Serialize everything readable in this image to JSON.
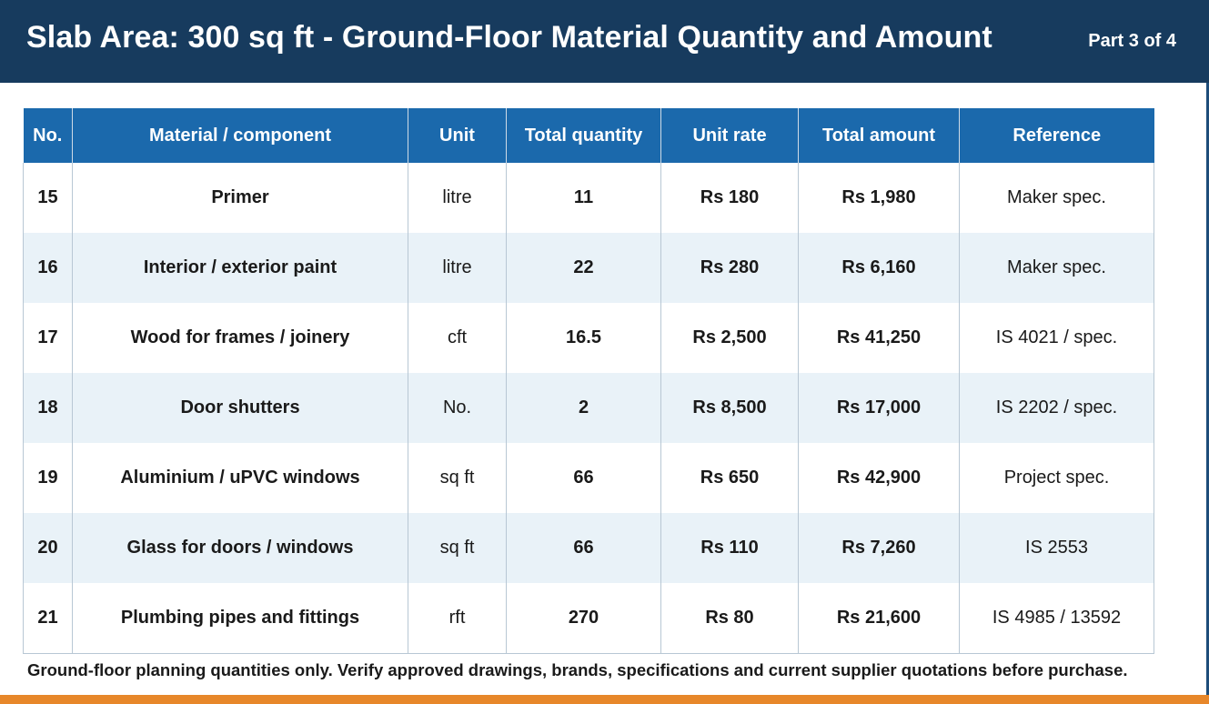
{
  "header": {
    "title": "Slab Area: 300 sq ft - Ground-Floor Material Quantity and Amount",
    "part": "Part 3 of 4"
  },
  "table": {
    "columns": [
      "No.",
      "Material / component",
      "Unit",
      "Total quantity",
      "Unit rate",
      "Total amount",
      "Reference"
    ],
    "rows": [
      {
        "no": "15",
        "material": "Primer",
        "unit": "litre",
        "quantity": "11",
        "rate": "Rs 180",
        "amount": "Rs 1,980",
        "reference": "Maker spec."
      },
      {
        "no": "16",
        "material": "Interior / exterior paint",
        "unit": "litre",
        "quantity": "22",
        "rate": "Rs 280",
        "amount": "Rs 6,160",
        "reference": "Maker spec."
      },
      {
        "no": "17",
        "material": "Wood for frames / joinery",
        "unit": "cft",
        "quantity": "16.5",
        "rate": "Rs 2,500",
        "amount": "Rs 41,250",
        "reference": "IS 4021 / spec."
      },
      {
        "no": "18",
        "material": "Door shutters",
        "unit": "No.",
        "quantity": "2",
        "rate": "Rs 8,500",
        "amount": "Rs 17,000",
        "reference": "IS 2202 / spec."
      },
      {
        "no": "19",
        "material": "Aluminium / uPVC windows",
        "unit": "sq ft",
        "quantity": "66",
        "rate": "Rs 650",
        "amount": "Rs 42,900",
        "reference": "Project spec."
      },
      {
        "no": "20",
        "material": "Glass for doors / windows",
        "unit": "sq ft",
        "quantity": "66",
        "rate": "Rs 110",
        "amount": "Rs 7,260",
        "reference": "IS 2553"
      },
      {
        "no": "21",
        "material": "Plumbing pipes and fittings",
        "unit": "rft",
        "quantity": "270",
        "rate": "Rs 80",
        "amount": "Rs 21,600",
        "reference": "IS 4985 / 13592"
      }
    ]
  },
  "footnote": "Ground-floor planning quantities only. Verify approved drawings, brands, specifications and current supplier quotations before purchase.",
  "colors": {
    "header_bg": "#173b5e",
    "table_header_bg": "#1b69ac",
    "amount_text": "#1f8389",
    "alt_row_bg": "#e9f2f8",
    "accent_bar": "#e7872a"
  }
}
